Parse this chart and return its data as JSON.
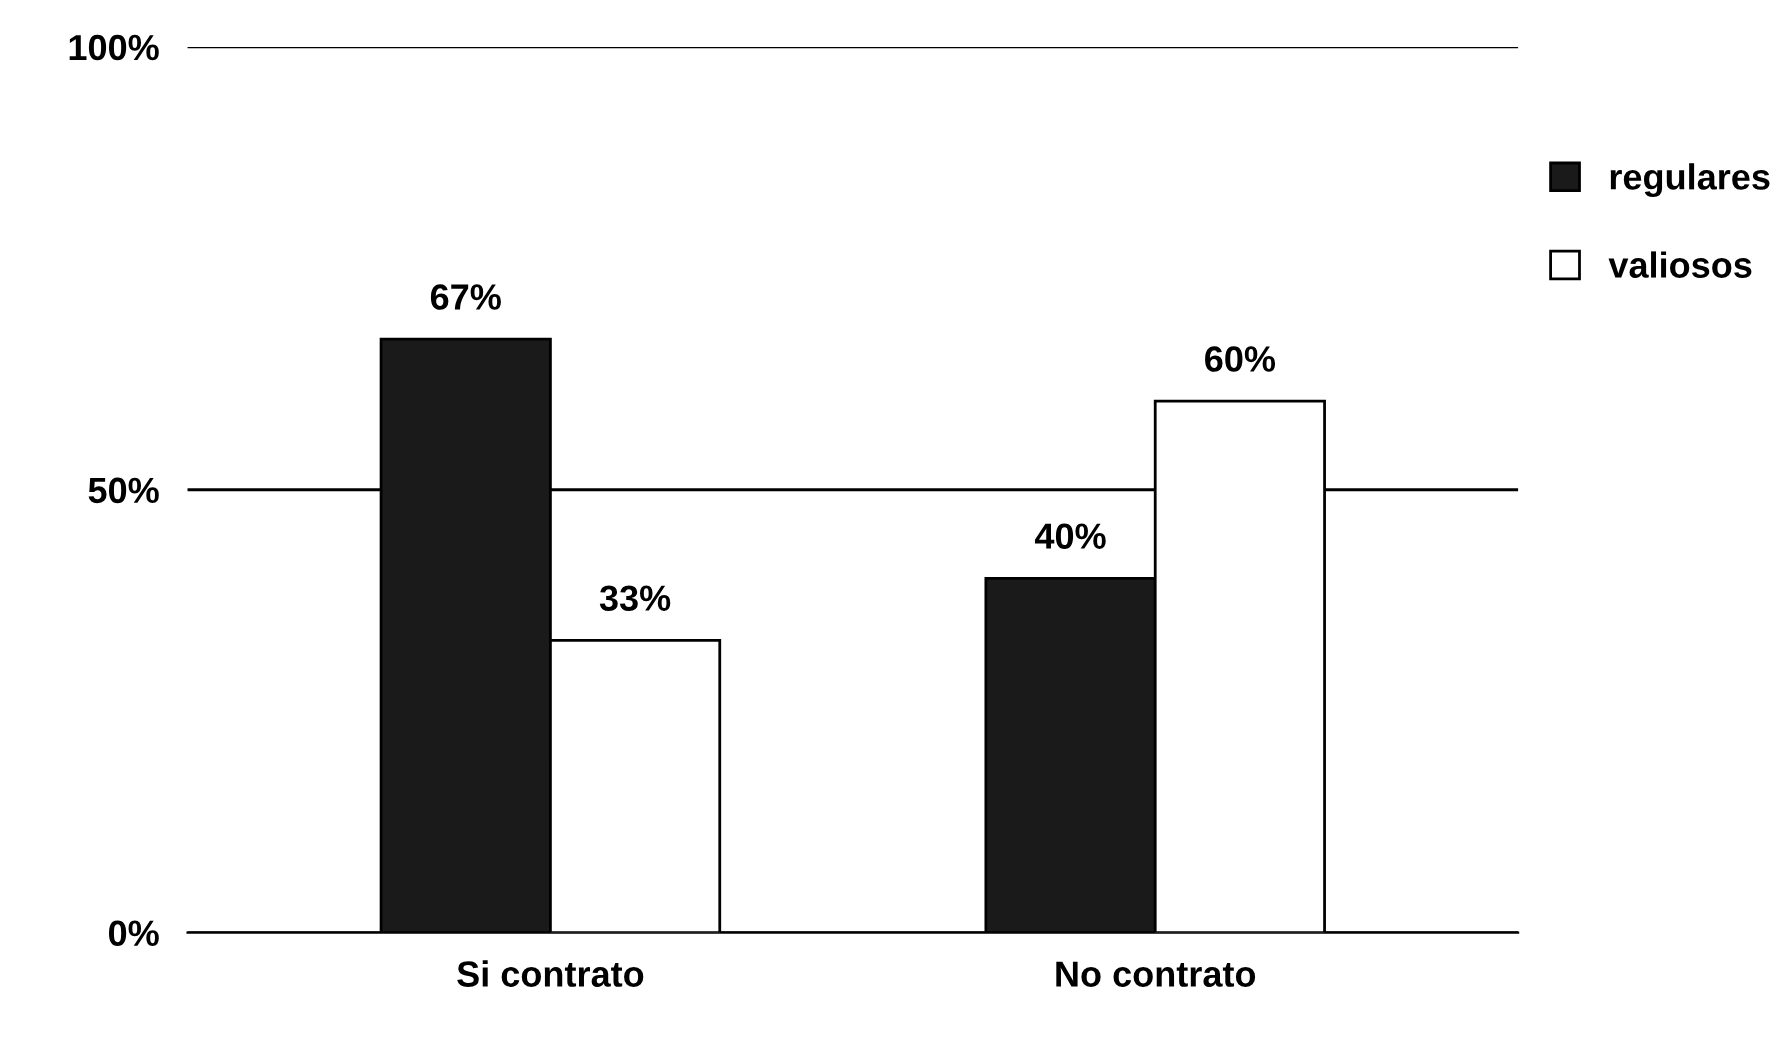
{
  "chart_data": {
    "type": "bar",
    "categories": [
      "Si contrato",
      "No contrato"
    ],
    "series": [
      {
        "name": "regulares",
        "color": "#1a1a1a",
        "values": [
          67,
          40
        ],
        "value_labels": [
          "67%",
          "40%"
        ]
      },
      {
        "name": "valiosos",
        "color": "#ffffff",
        "values": [
          33,
          60
        ],
        "value_labels": [
          "33%",
          "60%"
        ]
      }
    ],
    "ylim": [
      0,
      100
    ],
    "yticks": [
      {
        "value": 0,
        "label": "0%"
      },
      {
        "value": 50,
        "label": "50%"
      },
      {
        "value": 100,
        "label": "100%"
      }
    ],
    "grid": "y",
    "legend": "right"
  }
}
